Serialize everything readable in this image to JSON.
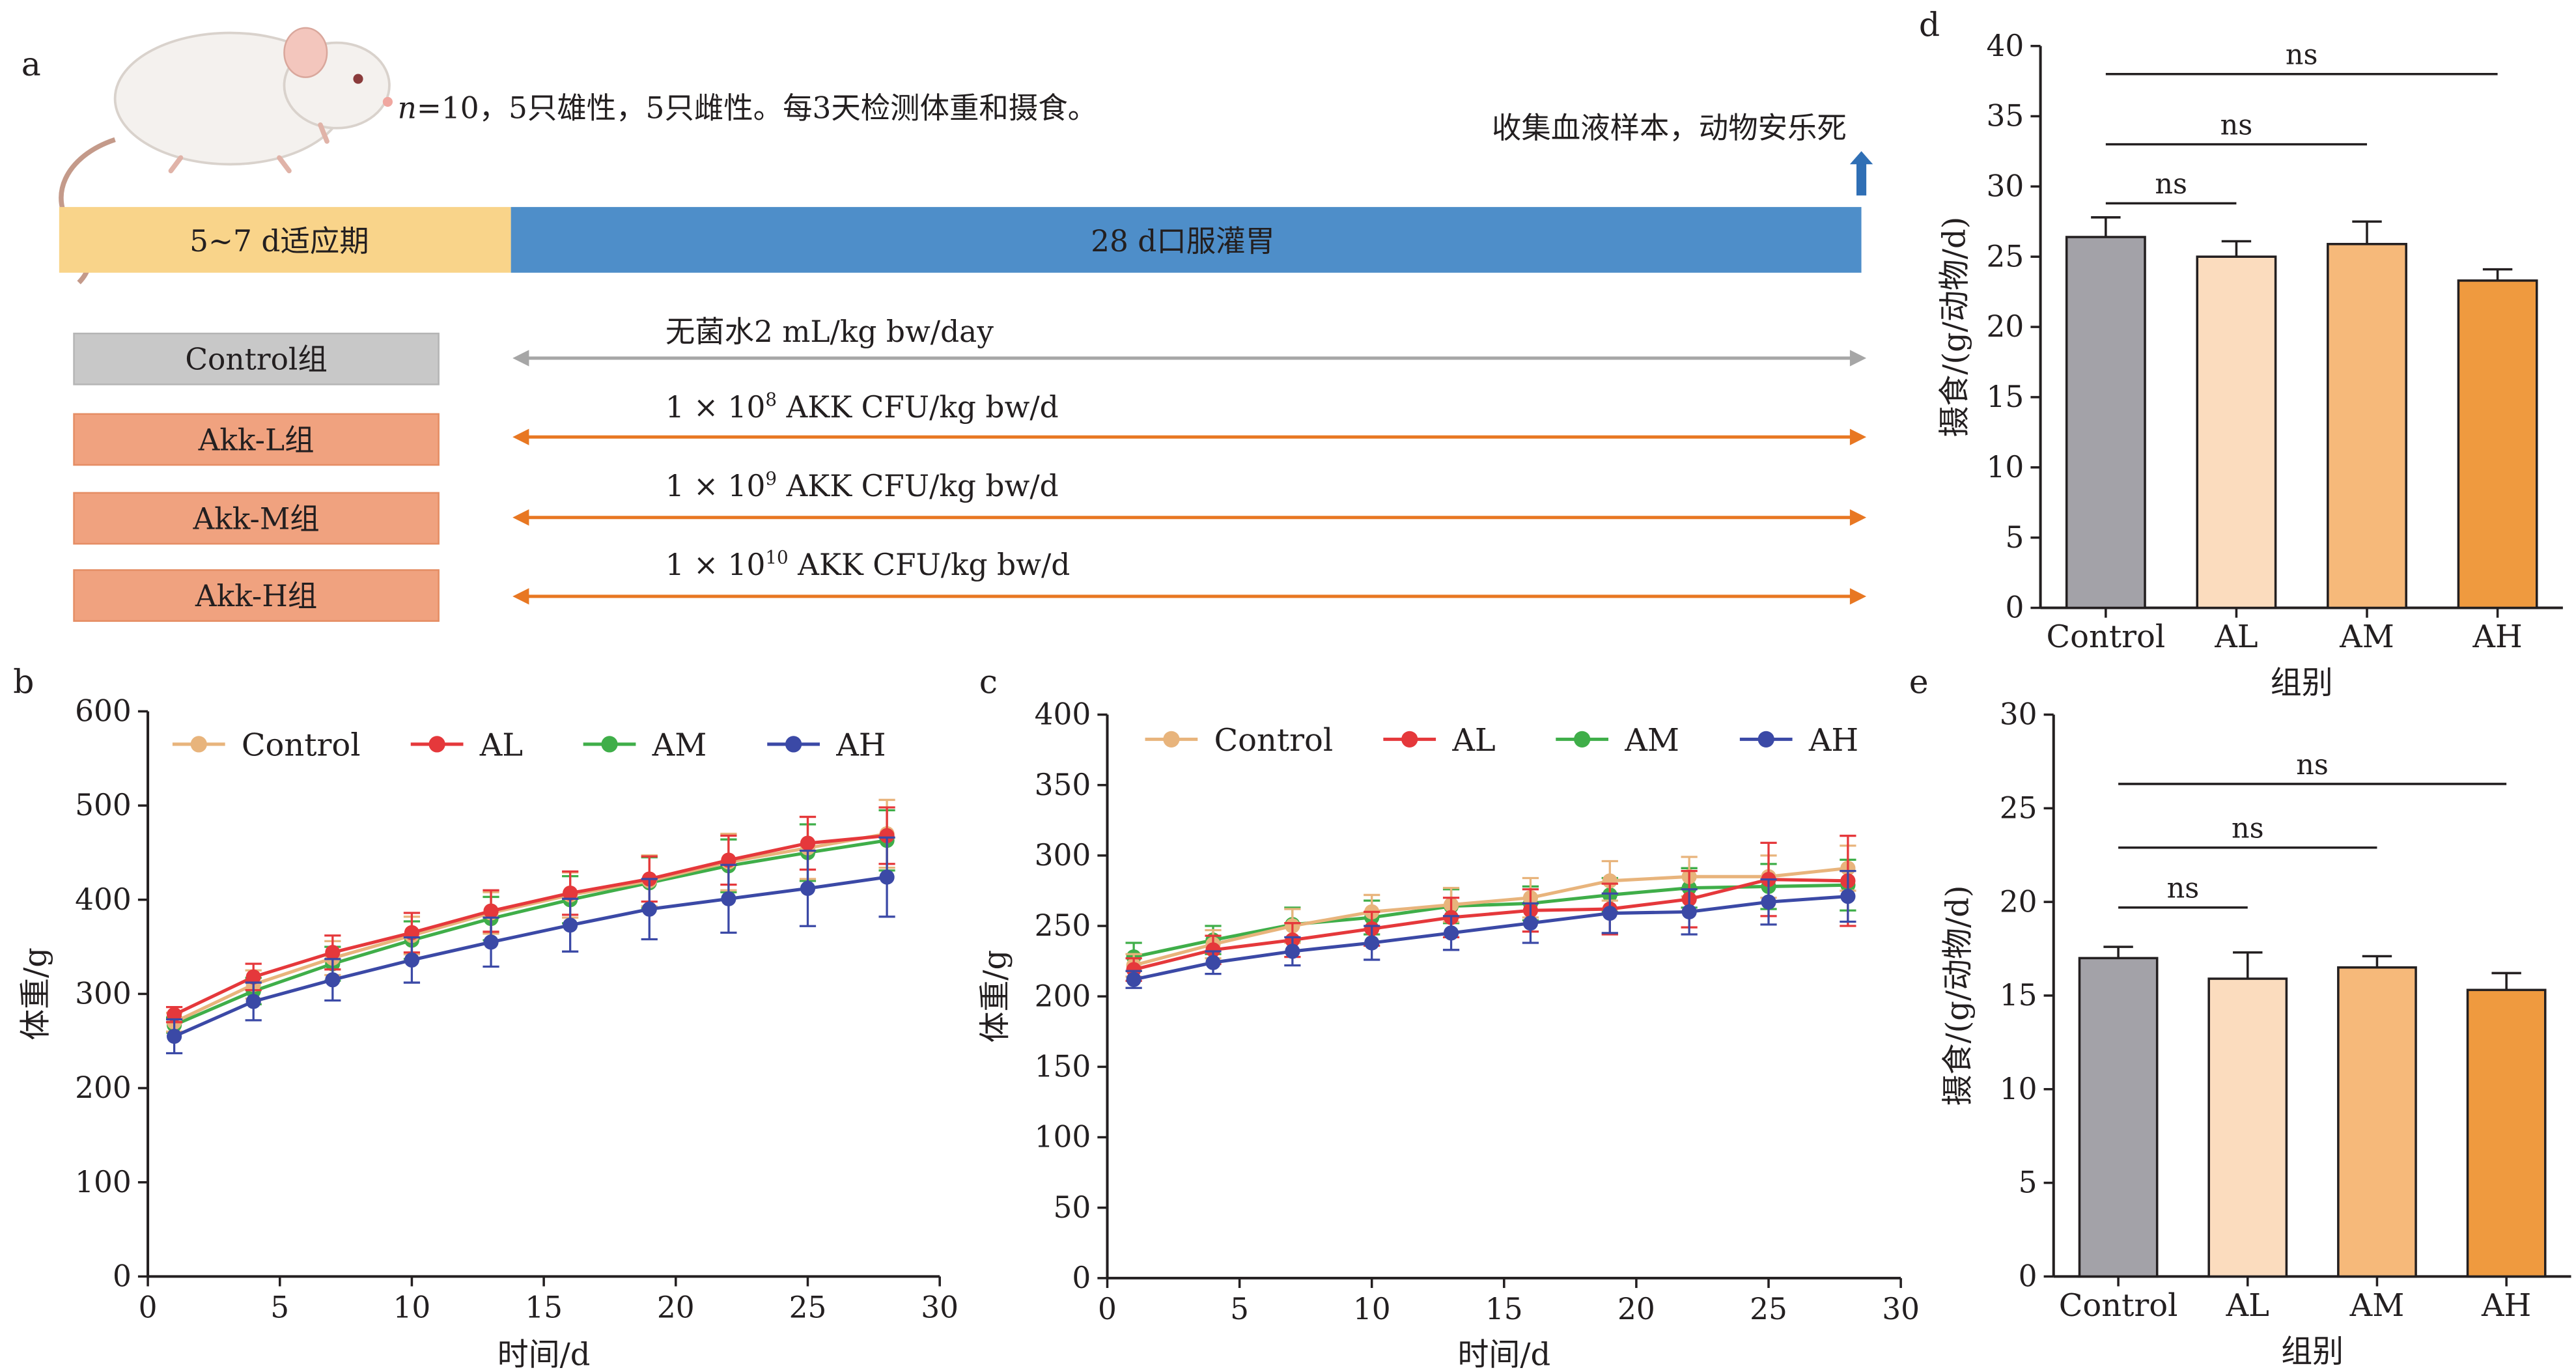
{
  "colors": {
    "control": "#e8b47c",
    "al": "#e5383b",
    "am": "#3fae49",
    "ah": "#3b49a6",
    "adapt_bar": "#f9d48a",
    "gavage_bar": "#4e8ec9",
    "control_group_box": "#c8c8c8",
    "akk_group_box": "#f0a27f",
    "arrow_grey": "#a6a6a6",
    "arrow_orange": "#e87722",
    "bar_control": "#a3a2a8",
    "bar_al": "#fbdcbe",
    "bar_am": "#f6b97a",
    "bar_ah": "#ef9a3f"
  },
  "panel_a": {
    "label": "a",
    "n_prefix": "n",
    "description": "=10，5只雄性，5只雌性。每3天检测体重和摄食。",
    "collect_text": "收集血液样本，动物安乐死",
    "adapt_label": "5~7 d适应期",
    "gavage_label": "28 d口服灌胃",
    "groups": [
      "Control组",
      "Akk-L组",
      "Akk-M组",
      "Akk-H组"
    ],
    "doses": [
      {
        "text": "无菌水2 mL/kg bw/day",
        "pre": "",
        "sup": "",
        "post": ""
      },
      {
        "text": "",
        "pre": "1 × 10",
        "sup": "8",
        "post": " AKK CFU/kg bw/d"
      },
      {
        "text": "",
        "pre": "1 × 10",
        "sup": "9",
        "post": " AKK CFU/kg bw/d"
      },
      {
        "text": "",
        "pre": "1 × 10",
        "sup": "10",
        "post": " AKK CFU/kg bw/d"
      }
    ]
  },
  "chart_data": [
    {
      "id": "b",
      "type": "line",
      "label": "b",
      "xlabel": "时间/d",
      "ylabel": "体重/g",
      "xlim": [
        0,
        30
      ],
      "ylim": [
        0,
        600
      ],
      "xticks": [
        0,
        5,
        10,
        15,
        20,
        25,
        30
      ],
      "yticks": [
        0,
        100,
        200,
        300,
        400,
        500,
        600
      ],
      "x": [
        1,
        4,
        7,
        10,
        13,
        16,
        19,
        22,
        25,
        28
      ],
      "legend": [
        "Control",
        "AL",
        "AM",
        "AH"
      ],
      "series": [
        {
          "name": "AM",
          "key": "am",
          "values": [
            267,
            303,
            332,
            357,
            380,
            400,
            418,
            436,
            450,
            463
          ],
          "errors": [
            8,
            14,
            18,
            20,
            23,
            25,
            27,
            28,
            30,
            32
          ]
        },
        {
          "name": "Control",
          "key": "control",
          "values": [
            270,
            310,
            338,
            362,
            386,
            405,
            420,
            440,
            455,
            470
          ],
          "errors": [
            10,
            15,
            18,
            20,
            22,
            24,
            27,
            30,
            33,
            36
          ]
        },
        {
          "name": "AL",
          "key": "al",
          "values": [
            278,
            318,
            344,
            365,
            388,
            407,
            422,
            442,
            460,
            468
          ],
          "errors": [
            8,
            14,
            18,
            21,
            22,
            23,
            24,
            26,
            28,
            30
          ]
        },
        {
          "name": "AH",
          "key": "ah",
          "values": [
            255,
            292,
            315,
            336,
            355,
            373,
            390,
            401,
            412,
            424
          ],
          "errors": [
            18,
            20,
            22,
            24,
            26,
            28,
            32,
            36,
            40,
            42
          ]
        }
      ]
    },
    {
      "id": "c",
      "type": "line",
      "label": "c",
      "xlabel": "时间/d",
      "ylabel": "体重/g",
      "xlim": [
        0,
        30
      ],
      "ylim": [
        0,
        400
      ],
      "xticks": [
        0,
        5,
        10,
        15,
        20,
        25,
        30
      ],
      "yticks": [
        0,
        50,
        100,
        150,
        200,
        250,
        300,
        350,
        400
      ],
      "x": [
        1,
        4,
        7,
        10,
        13,
        16,
        19,
        22,
        25,
        28
      ],
      "legend": [
        "Control",
        "AL",
        "AM",
        "AH"
      ],
      "series": [
        {
          "name": "AM",
          "key": "am",
          "values": [
            228,
            240,
            251,
            256,
            264,
            266,
            272,
            277,
            278,
            279
          ],
          "errors": [
            10,
            10,
            12,
            12,
            12,
            12,
            12,
            14,
            16,
            18
          ]
        },
        {
          "name": "Control",
          "key": "control",
          "values": [
            222,
            237,
            250,
            260,
            265,
            270,
            282,
            285,
            285,
            291
          ],
          "errors": [
            8,
            10,
            12,
            12,
            12,
            14,
            14,
            14,
            15,
            16
          ]
        },
        {
          "name": "AL",
          "key": "al",
          "values": [
            219,
            233,
            240,
            248,
            256,
            261,
            262,
            269,
            283,
            282
          ],
          "errors": [
            8,
            10,
            12,
            12,
            14,
            15,
            18,
            20,
            26,
            32
          ]
        },
        {
          "name": "AH",
          "key": "ah",
          "values": [
            212,
            224,
            232,
            238,
            245,
            252,
            259,
            260,
            267,
            271
          ],
          "errors": [
            6,
            8,
            10,
            12,
            12,
            14,
            14,
            16,
            16,
            18
          ]
        }
      ]
    },
    {
      "id": "d",
      "type": "bar",
      "label": "d",
      "xlabel": "组别",
      "ylabel": "摄食/(g/动物/d)",
      "ylim": [
        0,
        40
      ],
      "yticks": [
        0,
        5,
        10,
        15,
        20,
        25,
        30,
        35,
        40
      ],
      "categories": [
        "Control",
        "AL",
        "AM",
        "AH"
      ],
      "values": [
        26.4,
        25.0,
        25.9,
        23.3
      ],
      "errors": [
        1.4,
        1.1,
        1.6,
        0.8
      ],
      "significance": [
        {
          "from": 0,
          "to": 1,
          "y": 28.8,
          "label": "ns"
        },
        {
          "from": 0,
          "to": 2,
          "y": 33.0,
          "label": "ns"
        },
        {
          "from": 0,
          "to": 3,
          "y": 38.0,
          "label": "ns"
        }
      ]
    },
    {
      "id": "e",
      "type": "bar",
      "label": "e",
      "xlabel": "组别",
      "ylabel": "摄食/(g/动物/d)",
      "ylim": [
        0,
        30
      ],
      "yticks": [
        0,
        5,
        10,
        15,
        20,
        25,
        30
      ],
      "categories": [
        "Control",
        "AL",
        "AM",
        "AH"
      ],
      "values": [
        17.0,
        15.9,
        16.5,
        15.3
      ],
      "errors": [
        0.6,
        1.4,
        0.6,
        0.9
      ],
      "significance": [
        {
          "from": 0,
          "to": 1,
          "y": 19.7,
          "label": "ns"
        },
        {
          "from": 0,
          "to": 2,
          "y": 22.9,
          "label": "ns"
        },
        {
          "from": 0,
          "to": 3,
          "y": 26.3,
          "label": "ns"
        }
      ]
    }
  ]
}
